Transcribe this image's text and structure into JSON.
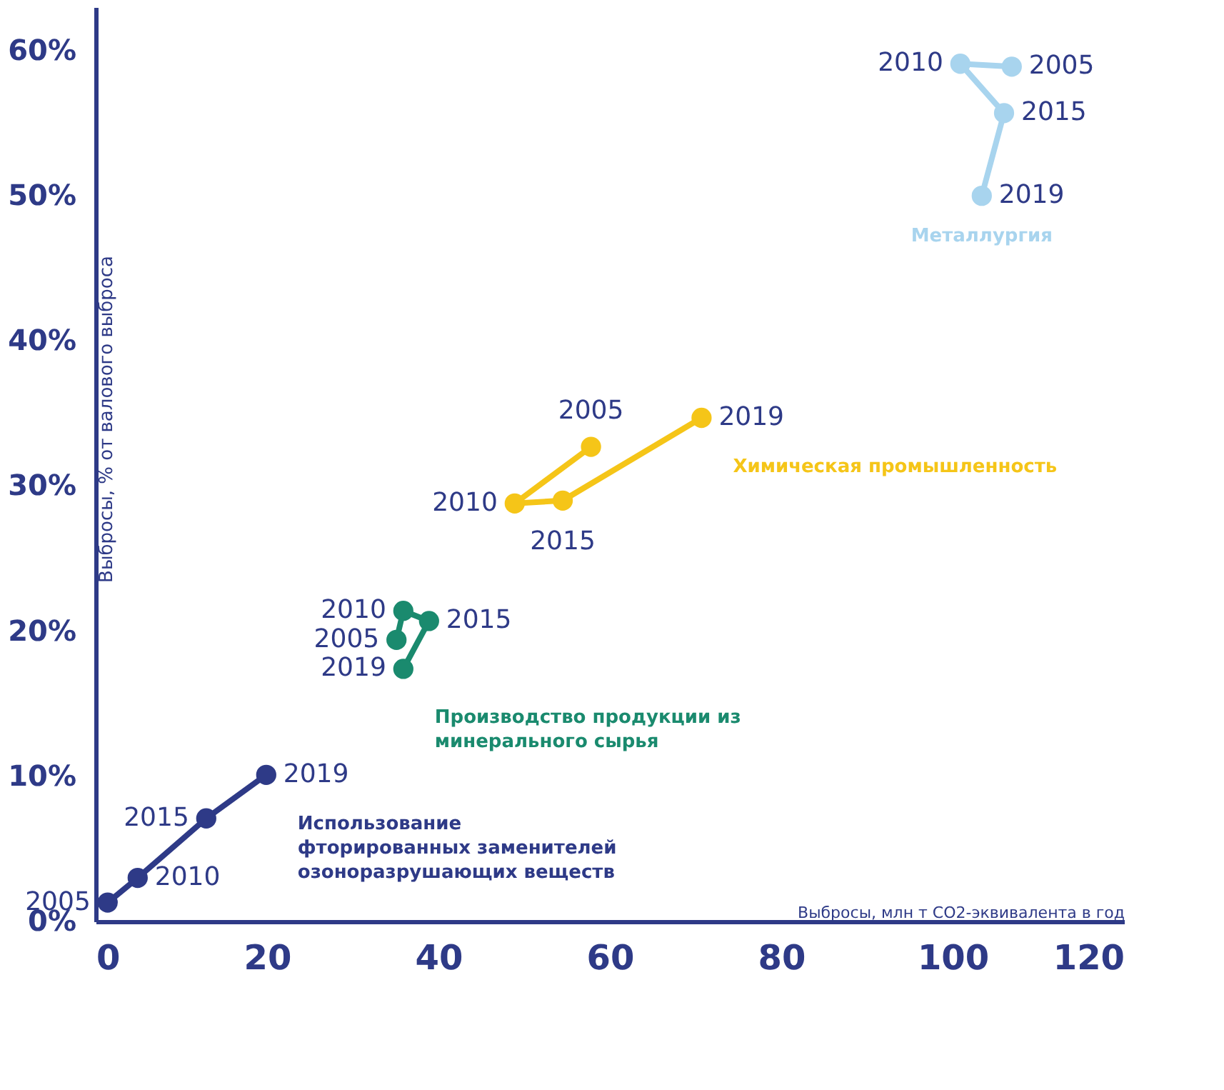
{
  "chart_data": {
    "type": "line",
    "xlabel": "Выбросы, млн т CO2-эквивалента в год",
    "ylabel": "Выбросы, % от валового выброса",
    "xlim": [
      0,
      120
    ],
    "xticks": [
      0,
      20,
      40,
      60,
      80,
      100,
      120
    ],
    "ylim": [
      0,
      63
    ],
    "yticks": [
      {
        "value": 0,
        "label": "0%"
      },
      {
        "value": 10,
        "label": "10%"
      },
      {
        "value": 20,
        "label": "20%"
      },
      {
        "value": 30,
        "label": "30%"
      },
      {
        "value": 40,
        "label": "40%"
      },
      {
        "value": 50,
        "label": "50%"
      },
      {
        "value": 60,
        "label": "60%"
      }
    ],
    "grid": false,
    "marker": "circle",
    "line_style": "solid",
    "series": [
      {
        "name": "Использование фторированных заменителей озоноразрушающих веществ",
        "color": "#2e3a87",
        "x": [
          1.4,
          4.9,
          12.9,
          19.9
        ],
        "values": [
          1.3,
          3.0,
          7.1,
          10.1
        ]
      },
      {
        "name": "Производство продукции из минерального сырья",
        "color": "#1a8a6e",
        "x": [
          35.1,
          35.9,
          38.9,
          35.9
        ],
        "values": [
          19.4,
          21.4,
          20.7,
          17.4
        ]
      },
      {
        "name": "Химическая промышленность",
        "color": "#f5c518",
        "x": [
          57.8,
          48.9,
          54.5,
          70.7
        ],
        "values": [
          32.7,
          28.8,
          29.0,
          34.7
        ]
      },
      {
        "name": "Металлургия",
        "color": "#a8d4ee",
        "x": [
          106.9,
          100.9,
          106.0,
          103.4
        ],
        "values": [
          58.9,
          59.1,
          55.7,
          50.0
        ]
      }
    ],
    "annotations": [
      {
        "text": "2005",
        "x": 1.4,
        "y": 1.3
      },
      {
        "text": "2010",
        "x": 4.9,
        "y": 3.0
      },
      {
        "text": "2015",
        "x": 12.9,
        "y": 7.1
      },
      {
        "text": "2019",
        "x": 19.9,
        "y": 10.1
      },
      {
        "text": "2005",
        "x": 35.1,
        "y": 19.4
      },
      {
        "text": "2010",
        "x": 35.9,
        "y": 21.4
      },
      {
        "text": "2015",
        "x": 38.9,
        "y": 20.7
      },
      {
        "text": "2019",
        "x": 35.9,
        "y": 17.4
      },
      {
        "text": "2005",
        "x": 57.8,
        "y": 32.7
      },
      {
        "text": "2010",
        "x": 48.9,
        "y": 28.8
      },
      {
        "text": "2015",
        "x": 54.5,
        "y": 29.0
      },
      {
        "text": "2019",
        "x": 70.7,
        "y": 34.7
      },
      {
        "text": "2005",
        "x": 106.9,
        "y": 58.9
      },
      {
        "text": "2010",
        "x": 100.9,
        "y": 59.1
      },
      {
        "text": "2015",
        "x": 106.0,
        "y": 55.7
      },
      {
        "text": "2019",
        "x": 103.4,
        "y": 50.0
      }
    ]
  }
}
